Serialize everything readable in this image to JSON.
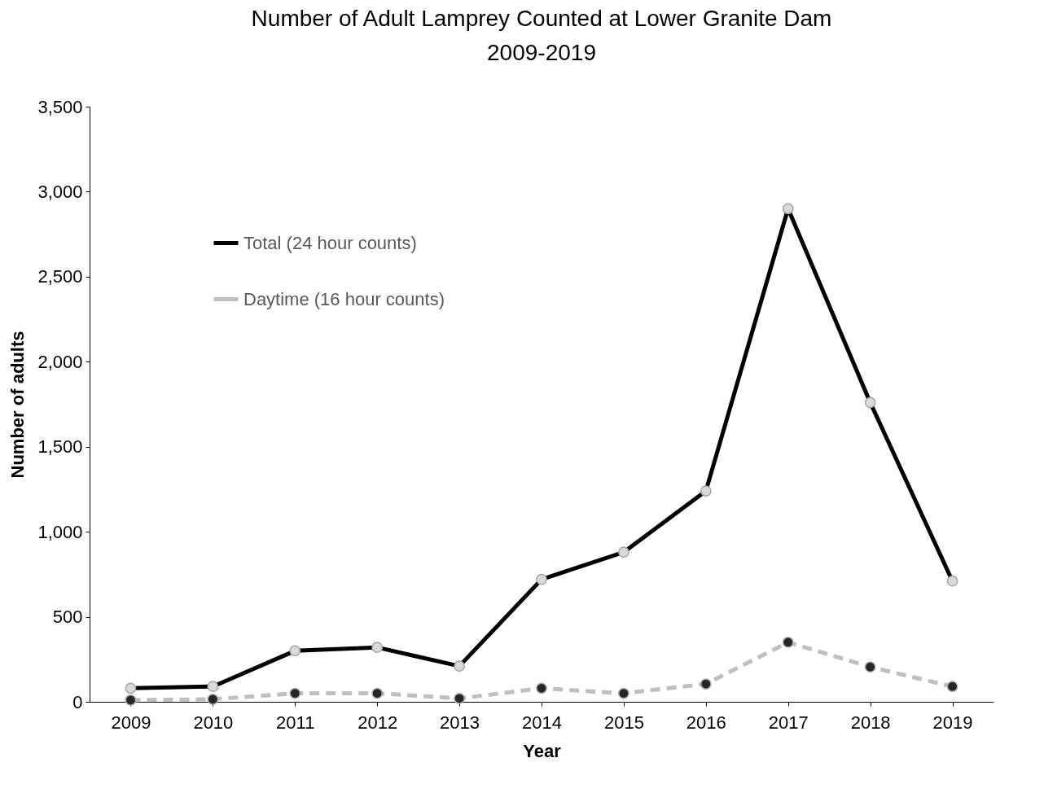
{
  "chart_data": {
    "type": "line",
    "title": "Number of Adult Lamprey Counted at Lower Granite Dam\n2009-2019",
    "xlabel": "Year",
    "ylabel": "Number of adults",
    "categories": [
      "2009",
      "2010",
      "2011",
      "2012",
      "2013",
      "2014",
      "2015",
      "2016",
      "2017",
      "2018",
      "2019"
    ],
    "series": [
      {
        "name": "Total (24 hour counts)",
        "color": "#000000",
        "values": [
          80,
          90,
          300,
          320,
          210,
          720,
          880,
          1240,
          2900,
          1760,
          710
        ]
      },
      {
        "name": "Daytime (16 hour counts)",
        "color": "#bfbfbf",
        "line_style": "dashed",
        "values": [
          10,
          15,
          50,
          50,
          20,
          80,
          50,
          105,
          350,
          205,
          90
        ]
      }
    ],
    "ylim": [
      0,
      3500
    ],
    "yticks": [
      0,
      500,
      {
        "value": 1000,
        "label": "1,000"
      },
      {
        "value": 1500,
        "label": "1,500"
      },
      {
        "value": 2000,
        "label": "2,000"
      },
      {
        "value": 2500,
        "label": "2,500"
      },
      {
        "value": 3000,
        "label": "3,000"
      },
      {
        "value": 3500,
        "label": "3,500"
      }
    ],
    "grid": false,
    "legend": "top left",
    "marker": "circle"
  }
}
